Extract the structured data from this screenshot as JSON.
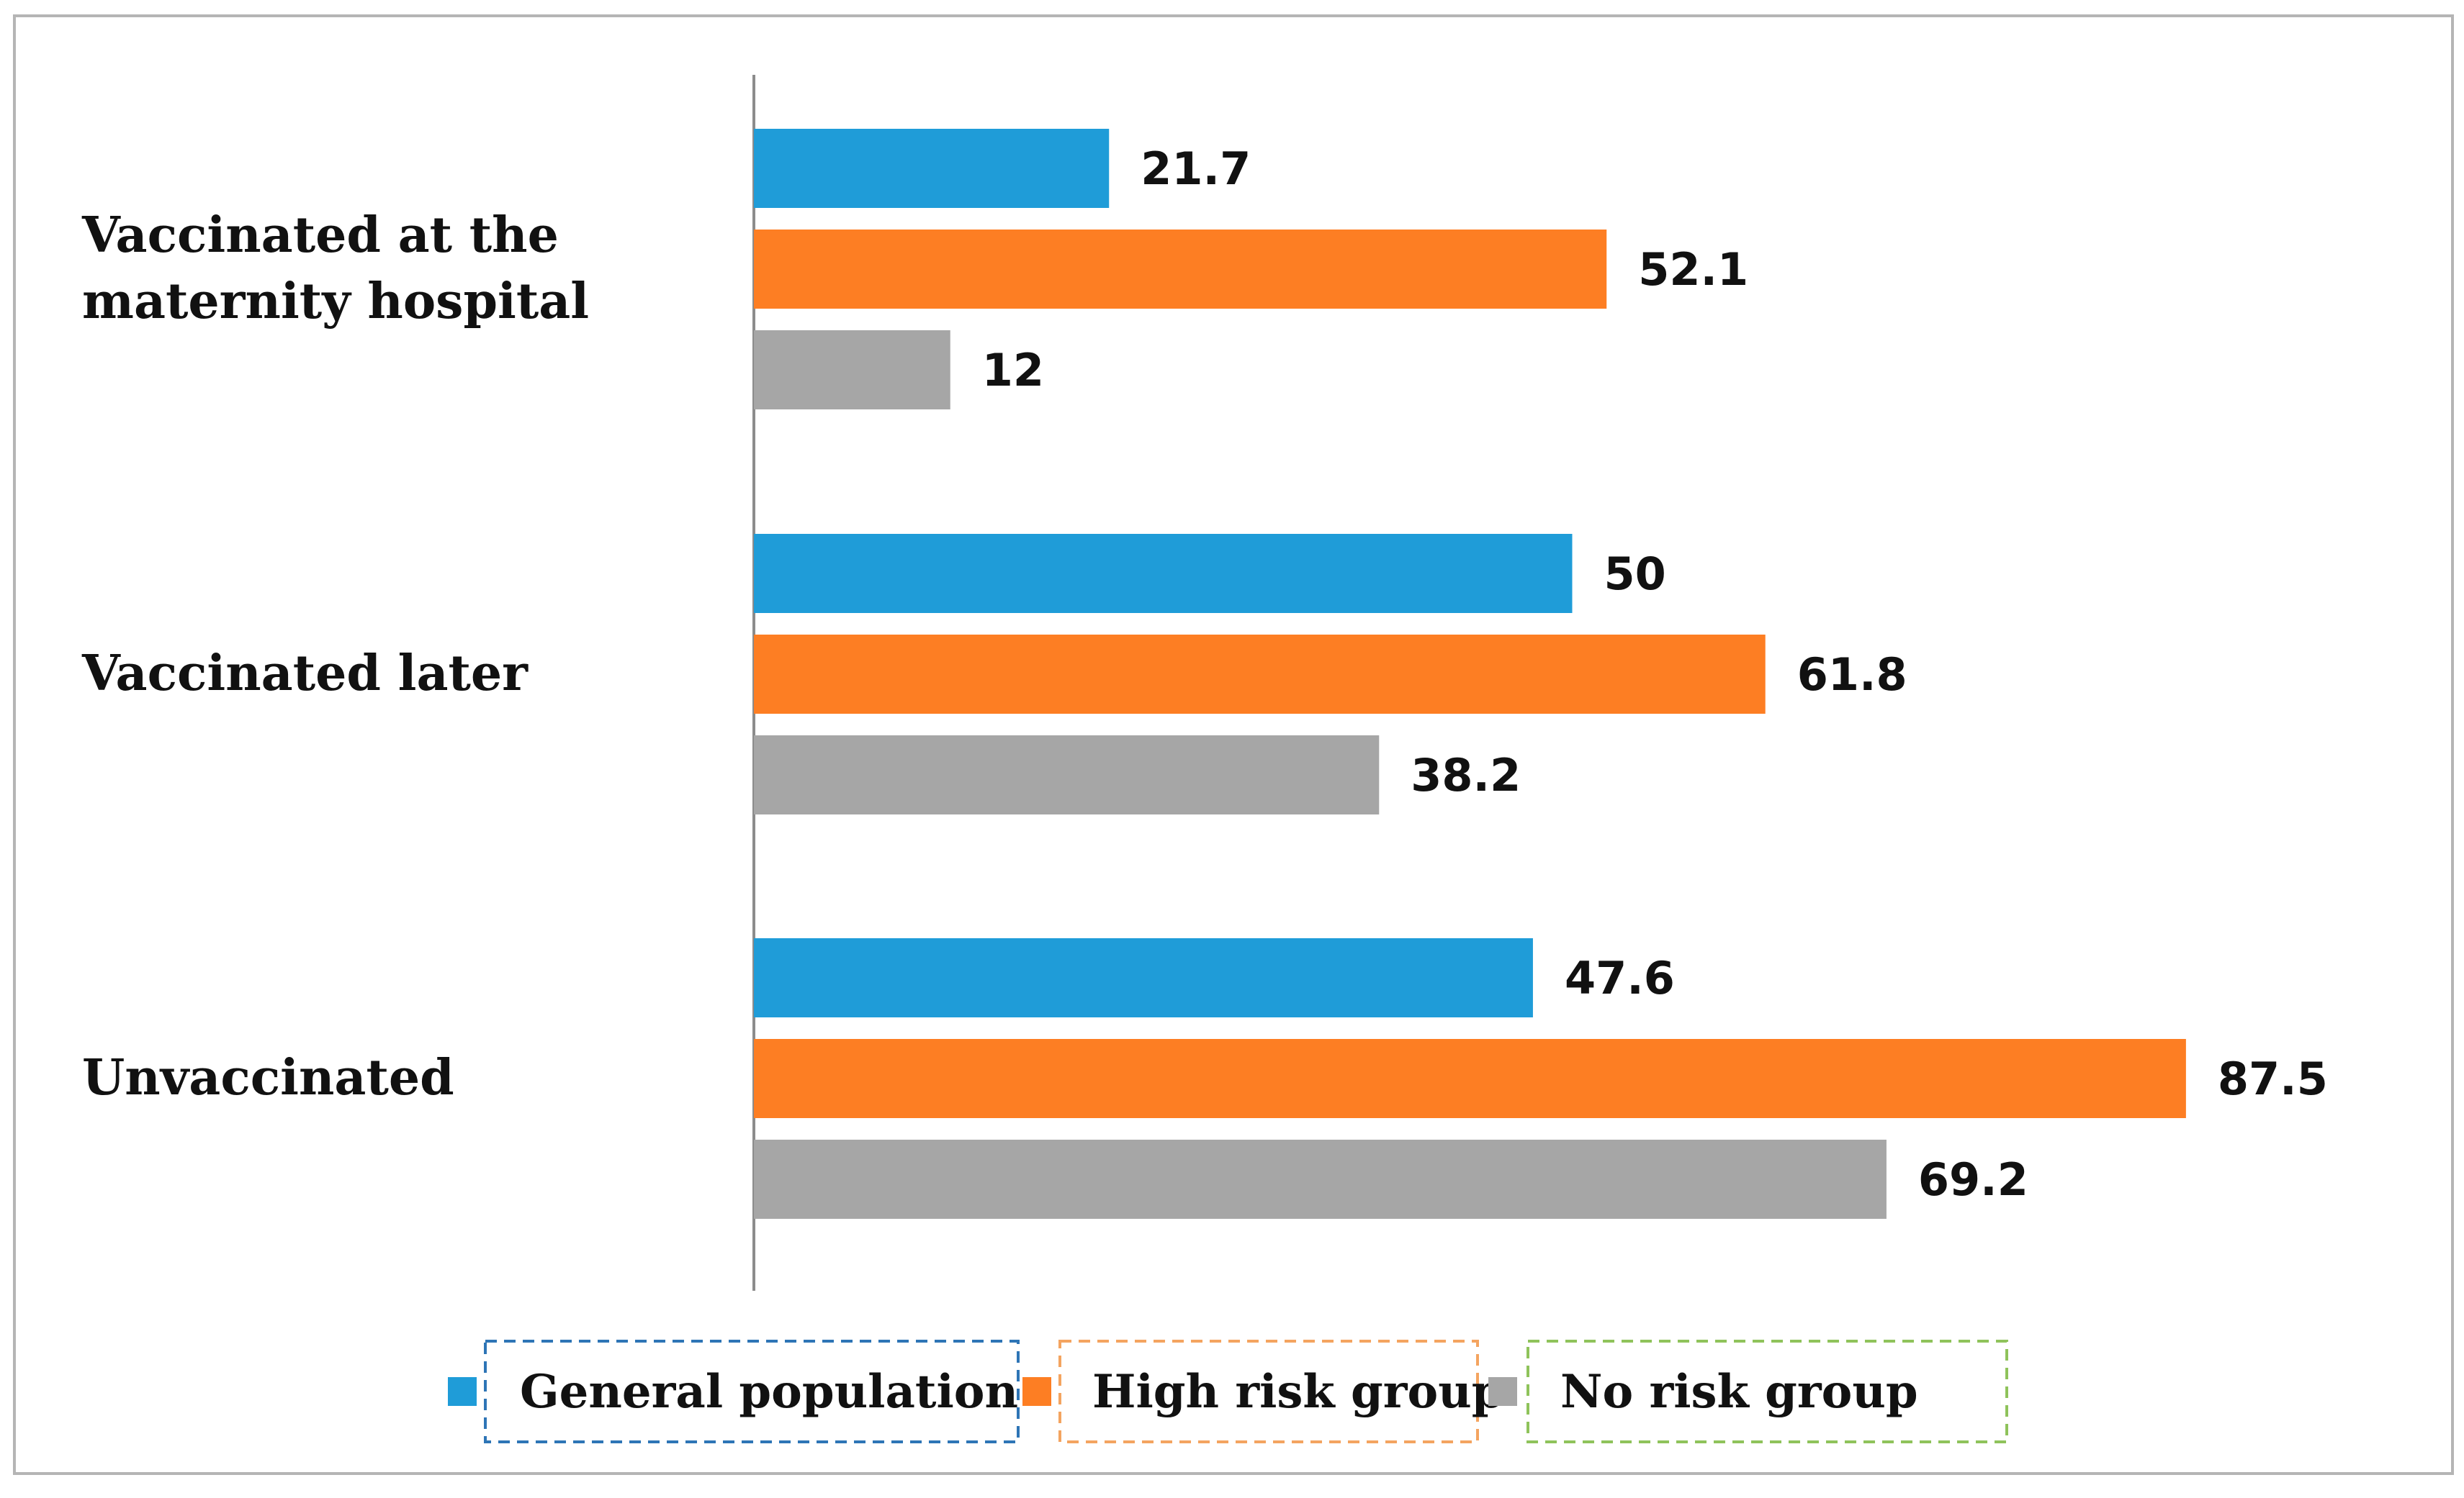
{
  "chart_data": {
    "type": "bar",
    "orientation": "horizontal",
    "title": "",
    "xlabel": "",
    "ylabel": "",
    "xlim": [
      0,
      100
    ],
    "grid": false,
    "legend_position": "bottom",
    "categories": [
      "Vaccinated at the maternity hospital",
      "Vaccinated later",
      "Unvaccinated"
    ],
    "category_lines": [
      [
        "Vaccinated at the",
        "maternity hospital"
      ],
      [
        "Vaccinated later"
      ],
      [
        "Unvaccinated"
      ]
    ],
    "series": [
      {
        "name": "General population",
        "color": "#1f9cd8",
        "border_color": "#2e75b6",
        "values": [
          21.7,
          50,
          47.6
        ]
      },
      {
        "name": "High risk group",
        "color": "#fd7e23",
        "border_color": "#f4a460",
        "values": [
          52.1,
          61.8,
          87.5
        ]
      },
      {
        "name": "No risk group",
        "color": "#a6a6a6",
        "border_color": "#8fc35b",
        "values": [
          12,
          38.2,
          69.2
        ]
      }
    ]
  }
}
